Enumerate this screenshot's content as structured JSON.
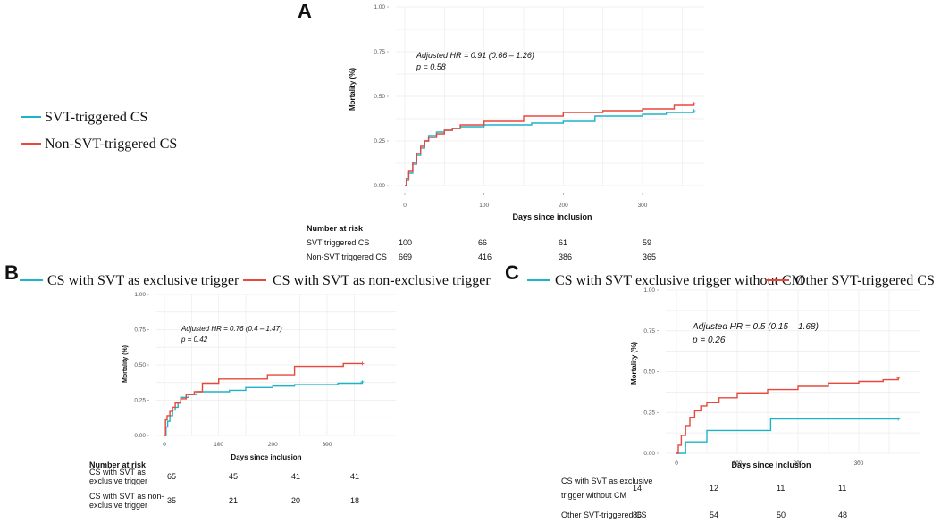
{
  "figure_labels": [
    "A",
    "B",
    "C"
  ],
  "colors": {
    "svt": "#1fb3c9",
    "non": "#e8473b"
  },
  "panels": [
    {
      "letter": "A",
      "legend": [
        {
          "label": "SVT-triggered CS",
          "color": "#1fb3c9"
        },
        {
          "label": "Non-SVT-triggered CS",
          "color": "#e8473b"
        }
      ],
      "annotation": [
        "Adjusted HR = 0.91 (0.66 – 1.26)",
        "p = 0.58"
      ],
      "risk_title": "Number at risk",
      "risk_rows": [
        {
          "label": [
            "SVT triggered CS"
          ],
          "values": [
            "100",
            "66",
            "61",
            "59"
          ]
        },
        {
          "label": [
            "Non-SVT triggered CS"
          ],
          "values": [
            "669",
            "416",
            "386",
            "365"
          ]
        }
      ]
    },
    {
      "letter": "B",
      "legend": [
        {
          "label": "CS with SVT as exclusive trigger",
          "color": "#1fb3c9"
        },
        {
          "label": "CS with SVT as non-exclusive trigger",
          "color": "#e8473b"
        }
      ],
      "annotation": [
        "Adjusted HR = 0.76 (0.4 – 1.47)",
        "p = 0.42"
      ],
      "risk_title": "Number at risk",
      "risk_rows": [
        {
          "label": [
            "CS with SVT as",
            "exclusive trigger"
          ],
          "values": [
            "65",
            "45",
            "41",
            "41"
          ]
        },
        {
          "label": [
            "CS with SVT as non-",
            "exclusive trigger"
          ],
          "values": [
            "35",
            "21",
            "20",
            "18"
          ]
        }
      ]
    },
    {
      "letter": "C",
      "legend": [
        {
          "label": "CS with SVT exclusive trigger without CM",
          "color": "#1fb3c9"
        },
        {
          "label": "Other SVT-triggered CS",
          "color": "#e8473b"
        }
      ],
      "annotation": [
        "Adjusted HR = 0.5 (0.15 – 1.68)",
        "p = 0.26"
      ],
      "risk_title": "",
      "risk_rows": [
        {
          "label": [
            "CS with SVT as exclusive",
            "trigger without CM"
          ],
          "values": [
            "14",
            "12",
            "11",
            "11"
          ]
        },
        {
          "label": [
            "Other SVT-triggered CS"
          ],
          "values": [
            "86",
            "54",
            "50",
            "48"
          ]
        }
      ]
    }
  ],
  "chart_data": [
    {
      "type": "line",
      "step": true,
      "title": "A",
      "xlabel": "Days since inclusion",
      "ylabel": "Mortality (%)",
      "xlim": [
        0,
        365
      ],
      "ylim": [
        0,
        1
      ],
      "xticks": [
        0,
        100,
        200,
        300
      ],
      "yticks": [
        "0.00",
        "0.25",
        "0.50",
        "0.75",
        "1.00"
      ],
      "series": [
        {
          "name": "SVT-triggered CS",
          "x": [
            0,
            2,
            5,
            10,
            15,
            20,
            25,
            30,
            40,
            50,
            60,
            70,
            90,
            100,
            140,
            160,
            200,
            240,
            300,
            330,
            365
          ],
          "y": [
            0,
            0.03,
            0.07,
            0.12,
            0.17,
            0.21,
            0.25,
            0.28,
            0.3,
            0.31,
            0.32,
            0.33,
            0.33,
            0.34,
            0.34,
            0.35,
            0.36,
            0.39,
            0.4,
            0.41,
            0.42
          ]
        },
        {
          "name": "Non-SVT-triggered CS",
          "x": [
            0,
            2,
            5,
            10,
            15,
            20,
            25,
            30,
            40,
            50,
            60,
            70,
            100,
            150,
            200,
            250,
            300,
            340,
            365
          ],
          "y": [
            0,
            0.04,
            0.08,
            0.13,
            0.18,
            0.22,
            0.25,
            0.27,
            0.29,
            0.31,
            0.32,
            0.34,
            0.36,
            0.39,
            0.41,
            0.42,
            0.43,
            0.45,
            0.46
          ]
        }
      ]
    },
    {
      "type": "line",
      "step": true,
      "title": "B",
      "xlabel": "Days since inclusion",
      "ylabel": "Mortality (%)",
      "xlim": [
        0,
        365
      ],
      "ylim": [
        0,
        1
      ],
      "xticks": [
        0,
        100,
        200,
        300
      ],
      "yticks": [
        "0.00",
        "0.25",
        "0.50",
        "0.75",
        "1.00"
      ],
      "series": [
        {
          "name": "CS with SVT as exclusive trigger",
          "x": [
            0,
            3,
            6,
            10,
            15,
            20,
            25,
            30,
            45,
            60,
            100,
            120,
            150,
            200,
            240,
            300,
            320,
            365
          ],
          "y": [
            0,
            0.06,
            0.1,
            0.14,
            0.18,
            0.2,
            0.23,
            0.27,
            0.29,
            0.31,
            0.31,
            0.32,
            0.34,
            0.35,
            0.36,
            0.36,
            0.37,
            0.38
          ]
        },
        {
          "name": "CS with SVT as non-exclusive trigger",
          "x": [
            0,
            2,
            5,
            10,
            15,
            20,
            30,
            40,
            55,
            70,
            100,
            190,
            240,
            330,
            365
          ],
          "y": [
            0,
            0.11,
            0.14,
            0.17,
            0.2,
            0.23,
            0.26,
            0.29,
            0.31,
            0.37,
            0.4,
            0.43,
            0.49,
            0.51,
            0.51
          ]
        }
      ]
    },
    {
      "type": "line",
      "step": true,
      "title": "C",
      "xlabel": "Days since inclusion",
      "ylabel": "Mortality (%)",
      "xlim": [
        0,
        365
      ],
      "ylim": [
        0,
        1
      ],
      "xticks": [
        0,
        100,
        200,
        300
      ],
      "yticks": [
        "0.00",
        "0.25",
        "0.50",
        "0.75",
        "1.00"
      ],
      "series": [
        {
          "name": "CS with SVT exclusive trigger without CM",
          "x": [
            0,
            15,
            50,
            155,
            365
          ],
          "y": [
            0,
            0.07,
            0.14,
            0.21,
            0.21
          ]
        },
        {
          "name": "Other SVT-triggered CS",
          "x": [
            0,
            3,
            8,
            15,
            22,
            30,
            40,
            50,
            70,
            100,
            150,
            200,
            250,
            300,
            340,
            365
          ],
          "y": [
            0,
            0.05,
            0.11,
            0.17,
            0.22,
            0.26,
            0.29,
            0.31,
            0.34,
            0.37,
            0.39,
            0.41,
            0.43,
            0.44,
            0.45,
            0.46
          ]
        }
      ]
    }
  ]
}
